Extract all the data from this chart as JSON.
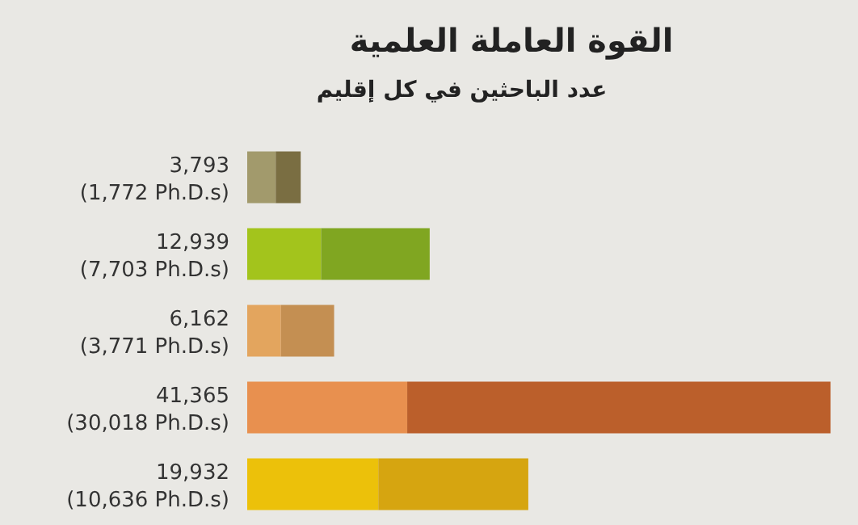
{
  "chart_data": {
    "type": "bar",
    "orientation": "horizontal",
    "stacked": true,
    "title": "القوة العاملة العلمية",
    "subtitle": "عدد الباحثين في كل إقليم",
    "categories": [
      null,
      null,
      null,
      null,
      null
    ],
    "series": [
      {
        "colors": [
          "#a29a6c",
          "#a3c41c",
          "#e3a55e",
          "#e8904f",
          "#ecc10a"
        ],
        "values": [
          2021,
          5236,
          2391,
          11347,
          9296
        ]
      },
      {
        "colors": [
          "#7a6e42",
          "#80a621",
          "#c48f52",
          "#bb5f2b",
          "#d6a510"
        ],
        "values": [
          1772,
          7703,
          3771,
          30018,
          10636
        ],
        "value_labels": [
          "(1,772 Ph.D.s)",
          "(7,703 Ph.D.s)",
          "(3,771 Ph.D.s)",
          "(30,018 Ph.D.s)",
          "(10,636 Ph.D.s)"
        ]
      }
    ],
    "totals": [
      "3,793",
      "12,939",
      "6,162",
      "41,365",
      "19,932"
    ]
  }
}
